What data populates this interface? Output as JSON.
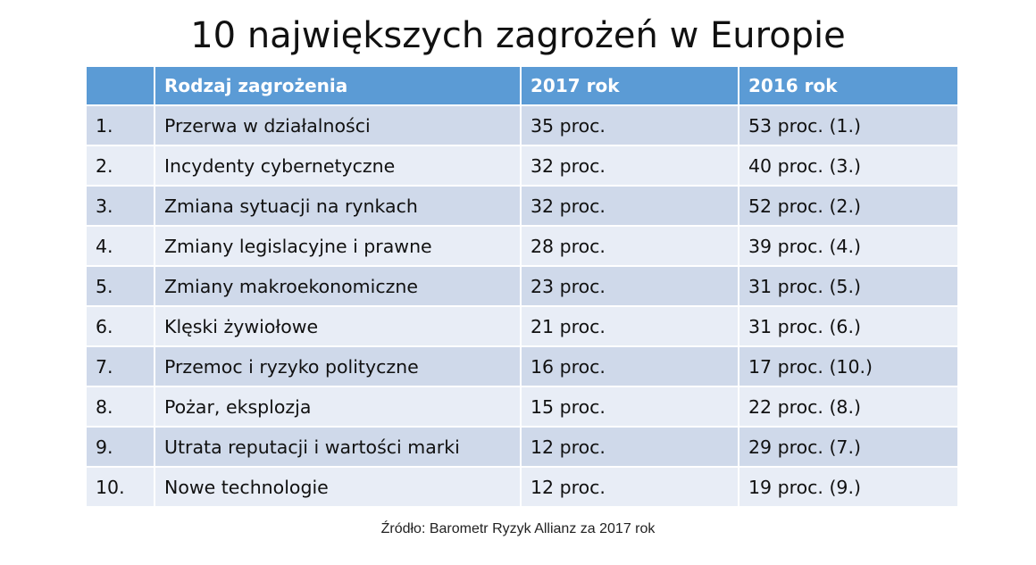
{
  "title": "10 największych zagrożeń w Europie",
  "table": {
    "headers": [
      "",
      "Rodzaj zagrożenia",
      "2017 rok",
      "2016 rok"
    ],
    "rows": [
      [
        "1.",
        "Przerwa w działalności",
        "35 proc.",
        "53 proc. (1.)"
      ],
      [
        "2.",
        "Incydenty cybernetyczne",
        "32 proc.",
        "40 proc. (3.)"
      ],
      [
        "3.",
        "Zmiana sytuacji na rynkach",
        "32 proc.",
        "52 proc. (2.)"
      ],
      [
        "4.",
        "Zmiany legislacyjne i prawne",
        "28 proc.",
        "39 proc. (4.)"
      ],
      [
        "5.",
        "Zmiany makroekonomiczne",
        "23 proc.",
        "31 proc. (5.)"
      ],
      [
        "6.",
        "Klęski żywiołowe",
        "21 proc.",
        "31 proc. (6.)"
      ],
      [
        "7.",
        "Przemoc i ryzyko polityczne",
        "16 proc.",
        "17 proc. (10.)"
      ],
      [
        "8.",
        "Pożar, eksplozja",
        "15 proc.",
        "22 proc. (8.)"
      ],
      [
        "9.",
        "Utrata reputacji i wartości marki",
        "12 proc.",
        "29 proc. (7.)"
      ],
      [
        "10.",
        "Nowe technologie",
        "12 proc.",
        "19 proc. (9.)"
      ]
    ]
  },
  "source": "Źródło:  Barometr Ryzyk Allianz za 2017 rok",
  "colors": {
    "header_bg": "#5b9bd5",
    "row_dark": "#cfd9ea",
    "row_light": "#e8edf6"
  }
}
